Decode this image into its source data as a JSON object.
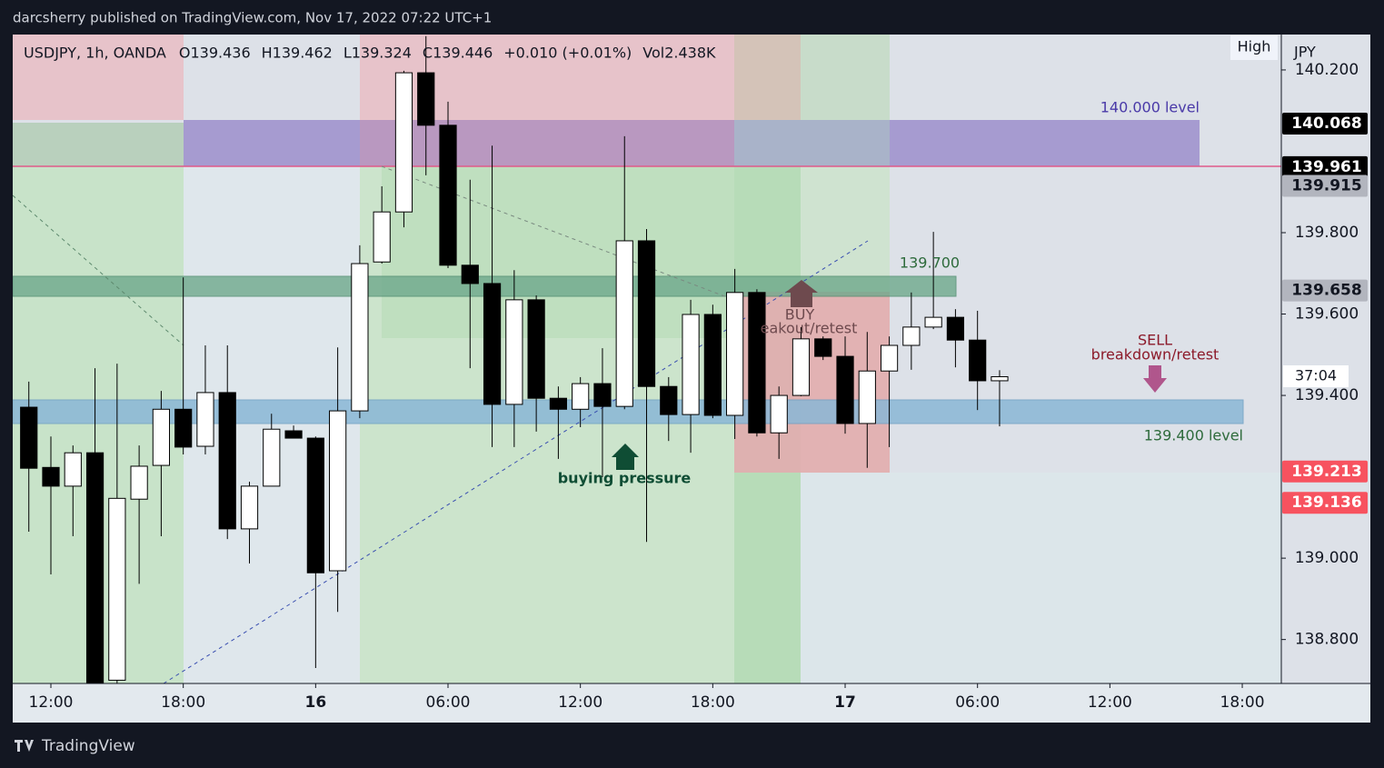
{
  "header": "darcsherry published on TradingView.com, Nov 17, 2022 07:22 UTC+1",
  "footer": "TradingView",
  "chart_data": {
    "type": "candlestick",
    "legend": [
      "USDJPY, 1h, OANDA",
      "O139.436",
      "H139.462",
      "L139.324",
      "C139.446",
      "+0.010 (+0.01%)",
      "Vol2.438K"
    ],
    "high_button": "High",
    "currency": "JPY",
    "x": [
      11,
      12,
      13,
      14,
      15,
      16,
      17,
      18,
      19,
      20,
      21,
      22,
      23,
      24,
      25,
      26,
      27,
      28,
      29,
      30,
      31,
      32,
      33,
      34,
      35,
      36,
      37,
      38,
      39,
      40,
      41,
      42,
      43,
      44,
      45,
      46,
      47,
      48,
      49,
      50,
      51,
      52,
      53,
      54,
      55
    ],
    "open": [
      139.371,
      139.223,
      139.177,
      139.259,
      138.7,
      139.145,
      139.228,
      139.366,
      139.275,
      139.407,
      139.072,
      139.177,
      139.313,
      139.295,
      138.969,
      139.362,
      139.728,
      139.851,
      140.193,
      140.064,
      139.72,
      139.675,
      139.378,
      139.635,
      139.393,
      139.366,
      139.429,
      139.373,
      139.78,
      139.422,
      139.353,
      139.599,
      139.351,
      139.653,
      139.308,
      139.4,
      139.539,
      139.496,
      139.331,
      139.46,
      139.523,
      139.568,
      139.592,
      139.536,
      139.436
    ],
    "high": [
      139.434,
      139.299,
      139.277,
      139.467,
      139.478,
      139.277,
      139.411,
      139.69,
      139.523,
      139.523,
      139.188,
      139.355,
      139.326,
      139.299,
      139.518,
      139.769,
      139.914,
      140.198,
      140.283,
      140.122,
      139.93,
      140.014,
      139.708,
      139.646,
      139.422,
      139.445,
      139.516,
      140.037,
      139.809,
      139.445,
      139.635,
      139.623,
      139.711,
      139.661,
      139.422,
      139.568,
      139.545,
      139.545,
      139.556,
      139.545,
      139.653,
      139.802,
      139.612,
      139.608,
      139.462
    ],
    "low": [
      139.065,
      138.96,
      139.054,
      138.66,
      138.68,
      138.937,
      139.054,
      139.255,
      139.255,
      139.047,
      138.987,
      139.177,
      139.295,
      138.73,
      138.868,
      139.344,
      139.724,
      139.813,
      139.941,
      139.713,
      139.467,
      139.273,
      139.273,
      139.311,
      139.244,
      139.322,
      139.199,
      139.366,
      139.04,
      139.288,
      139.259,
      139.344,
      139.293,
      139.299,
      139.244,
      139.398,
      139.487,
      139.306,
      139.222,
      139.273,
      139.463,
      139.563,
      139.469,
      139.364,
      139.324
    ],
    "close": [
      139.221,
      139.177,
      139.259,
      138.68,
      139.147,
      139.226,
      139.366,
      139.273,
      139.407,
      139.072,
      139.177,
      139.317,
      139.295,
      138.964,
      139.362,
      139.724,
      139.851,
      140.193,
      140.064,
      139.72,
      139.675,
      139.378,
      139.635,
      139.393,
      139.366,
      139.429,
      139.373,
      139.78,
      139.422,
      139.353,
      139.599,
      139.351,
      139.653,
      139.308,
      139.4,
      139.539,
      139.496,
      139.331,
      139.46,
      139.523,
      139.568,
      139.592,
      139.536,
      139.436,
      139.446
    ],
    "up_color": "#ffffff",
    "down_color": "#000000",
    "xlim": [
      10.27,
      67.77
    ],
    "ylim": [
      138.692,
      140.287
    ],
    "xticks": [
      {
        "value": 12,
        "label": "12:00"
      },
      {
        "value": 18,
        "label": "18:00"
      },
      {
        "value": 24,
        "label": "16"
      },
      {
        "value": 30,
        "label": "06:00"
      },
      {
        "value": 36,
        "label": "12:00"
      },
      {
        "value": 42,
        "label": "18:00"
      },
      {
        "value": 48,
        "label": "17"
      },
      {
        "value": 54,
        "label": "06:00"
      },
      {
        "value": 60,
        "label": "12:00"
      },
      {
        "value": 66,
        "label": "18:00"
      }
    ],
    "yticks": [
      {
        "value": 140.2,
        "label": "140.200"
      },
      {
        "value": 139.8,
        "label": "139.800"
      },
      {
        "value": 139.6,
        "label": "139.600"
      },
      {
        "value": 139.4,
        "label": "139.400"
      },
      {
        "value": 139,
        "label": "139.000"
      },
      {
        "value": 138.8,
        "label": "138.800"
      }
    ],
    "price_labels": [
      {
        "value": 140.068,
        "color": "#000000"
      },
      {
        "value": 139.961,
        "color": "#000000"
      },
      {
        "value": 139.915,
        "color": "#b2b5be"
      },
      {
        "value": 139.658,
        "color": "#b2b5be"
      },
      {
        "value": 139.213,
        "color": "#f7525f"
      },
      {
        "value": 139.136,
        "color": "#f7525f"
      }
    ],
    "countdown": "37:04",
    "annotations": [
      "140.000 level",
      "139.700",
      "BUY",
      "eakout/retest",
      "buying pressure",
      "SELL",
      "breakdown/retest",
      "139.400 level"
    ]
  }
}
